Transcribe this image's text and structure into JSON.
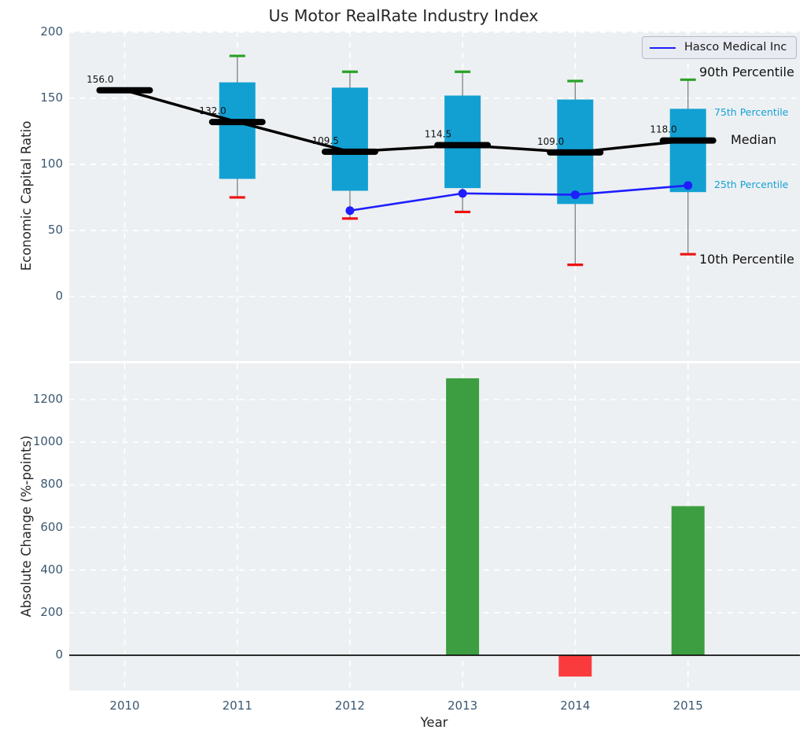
{
  "figure": {
    "title": "Us Motor RealRate Industry Index",
    "legend": {
      "label": "Hasco Medical Inc"
    }
  },
  "colors": {
    "axes_bg": "#edf0f2",
    "grid": "#ffffff",
    "tick_label": "#3b5872",
    "box_fill": "#12a0d3",
    "median_line": "#000000",
    "hasco_line": "#1e1eff",
    "p90_cap": "#28a228",
    "p10_cap": "#ee1111",
    "bar_positive": "#3c9e41",
    "bar_negative": "#f93b3d",
    "annotation_cyan": "#14a1d6",
    "zero_line": "#111111",
    "whisker": "#808080",
    "text": "#262626"
  },
  "chart_data": [
    {
      "type": "boxplot+line",
      "title": "Us Motor RealRate Industry Index",
      "ylabel": "Economic Capital Ratio",
      "categories": [
        "2010",
        "2011",
        "2012",
        "2013",
        "2014",
        "2015"
      ],
      "yticks": [
        200,
        150,
        100,
        50,
        0
      ],
      "ylim": [
        -50,
        200.5
      ],
      "grid": "white dashed",
      "legend_position": "upper right",
      "series": [
        {
          "name": "90th Percentile",
          "values": [
            null,
            182,
            170,
            170,
            163,
            164
          ]
        },
        {
          "name": "75th Percentile",
          "values": [
            null,
            162,
            158,
            152,
            149,
            142
          ]
        },
        {
          "name": "Median",
          "values": [
            156,
            132,
            109.5,
            114.5,
            109,
            118
          ]
        },
        {
          "name": "25th Percentile",
          "values": [
            null,
            89,
            80,
            82,
            70,
            79
          ]
        },
        {
          "name": "10th Percentile",
          "values": [
            null,
            75,
            59,
            64,
            24,
            32
          ]
        },
        {
          "name": "Hasco Medical Inc",
          "values": [
            null,
            null,
            65,
            78,
            77,
            84
          ]
        }
      ],
      "median_labels": [
        "156.0",
        "132.0",
        "109.5",
        "114.5",
        "109.0",
        "118.0"
      ],
      "annotations": {
        "p90": "90th Percentile",
        "p75": "75th Percentile",
        "median": "Median",
        "p25": "25th Percentile",
        "p10": "10th Percentile"
      }
    },
    {
      "type": "bar",
      "ylabel": "Absolute Change (%-points)",
      "xlabel": "Year",
      "categories": [
        "2010",
        "2011",
        "2012",
        "2013",
        "2014",
        "2015"
      ],
      "values": [
        null,
        null,
        null,
        1300,
        -100,
        700
      ],
      "yticks": [
        1200,
        1000,
        800,
        600,
        400,
        200,
        0
      ],
      "ylim": [
        -166,
        1370
      ]
    }
  ]
}
